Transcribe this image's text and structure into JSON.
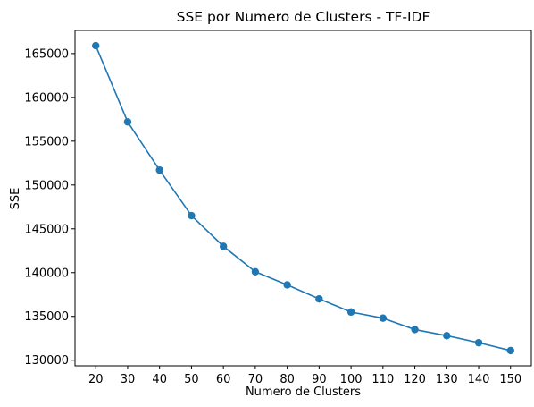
{
  "colors": {
    "line": "#1f77b4",
    "axes": "#000000",
    "background": "#ffffff"
  },
  "chart_data": {
    "type": "line",
    "title": "SSE por Numero de Clusters - TF-IDF",
    "xlabel": "Numero de Clusters",
    "ylabel": "SSE",
    "x": [
      20,
      30,
      40,
      50,
      60,
      70,
      80,
      90,
      100,
      110,
      120,
      130,
      140,
      150
    ],
    "series": [
      {
        "values": [
          165900,
          157200,
          151700,
          146500,
          143000,
          140100,
          138600,
          137000,
          135500,
          134800,
          133500,
          132800,
          132000,
          131100
        ],
        "marker": "circle"
      }
    ],
    "xticks": [
      20,
      30,
      40,
      50,
      60,
      70,
      80,
      90,
      100,
      110,
      120,
      130,
      140,
      150
    ],
    "yticks": [
      130000,
      135000,
      140000,
      145000,
      150000,
      155000,
      160000,
      165000
    ],
    "xlim": [
      13.5,
      156.5
    ],
    "ylim": [
      129360,
      167640
    ],
    "grid": false,
    "legend": false
  }
}
